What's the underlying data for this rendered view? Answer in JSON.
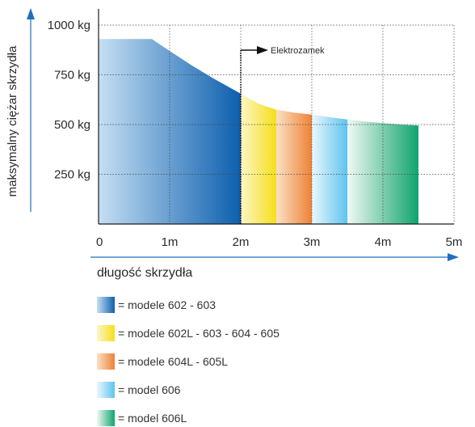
{
  "chart_data": {
    "type": "area",
    "ylabel": "maksymalny ciężar skrzydła",
    "xlabel": "długość skrzydła",
    "xlim": [
      0,
      5
    ],
    "ylim": [
      0,
      1000
    ],
    "x_ticks": [
      {
        "value": 0,
        "label": "0"
      },
      {
        "value": 1,
        "label": "1m"
      },
      {
        "value": 2,
        "label": "2m"
      },
      {
        "value": 3,
        "label": "3m"
      },
      {
        "value": 4,
        "label": "4m"
      },
      {
        "value": 5,
        "label": "5m"
      }
    ],
    "y_ticks": [
      {
        "value": 250,
        "label": "250 kg"
      },
      {
        "value": 500,
        "label": "500 kg"
      },
      {
        "value": 750,
        "label": "750 kg"
      },
      {
        "value": 1000,
        "label": "1000 kg"
      }
    ],
    "grid": true,
    "curve": {
      "x": [
        0,
        0.75,
        1.0,
        1.3,
        1.6,
        1.8,
        2.0,
        2.25,
        2.5,
        2.75,
        3.0,
        3.25,
        3.5,
        3.75,
        4.0,
        4.25,
        4.5
      ],
      "y": [
        930,
        930,
        870,
        800,
        735,
        695,
        655,
        605,
        575,
        560,
        550,
        537,
        525,
        515,
        507,
        500,
        495
      ]
    },
    "segments": [
      {
        "name": "modele 602 - 603",
        "x_start": 0,
        "x_end": 2.0,
        "colors": [
          "#c5dff3",
          "#0d5fae"
        ]
      },
      {
        "name": "modele 602L - 603 - 604 - 605",
        "x_start": 2.0,
        "x_end": 2.5,
        "colors": [
          "#fcf6c8",
          "#f5df1a"
        ]
      },
      {
        "name": "modele 604L - 605L",
        "x_start": 2.5,
        "x_end": 3.0,
        "colors": [
          "#fbe0c4",
          "#ee8236"
        ]
      },
      {
        "name": "model 606",
        "x_start": 3.0,
        "x_end": 3.5,
        "colors": [
          "#eaf7fd",
          "#5ec4ef"
        ]
      },
      {
        "name": "model 606L",
        "x_start": 3.5,
        "x_end": 4.5,
        "colors": [
          "#f0f9f4",
          "#0fa46d"
        ]
      }
    ],
    "annotation": {
      "text": "Elektrozamek",
      "x": 2.0
    }
  }
}
